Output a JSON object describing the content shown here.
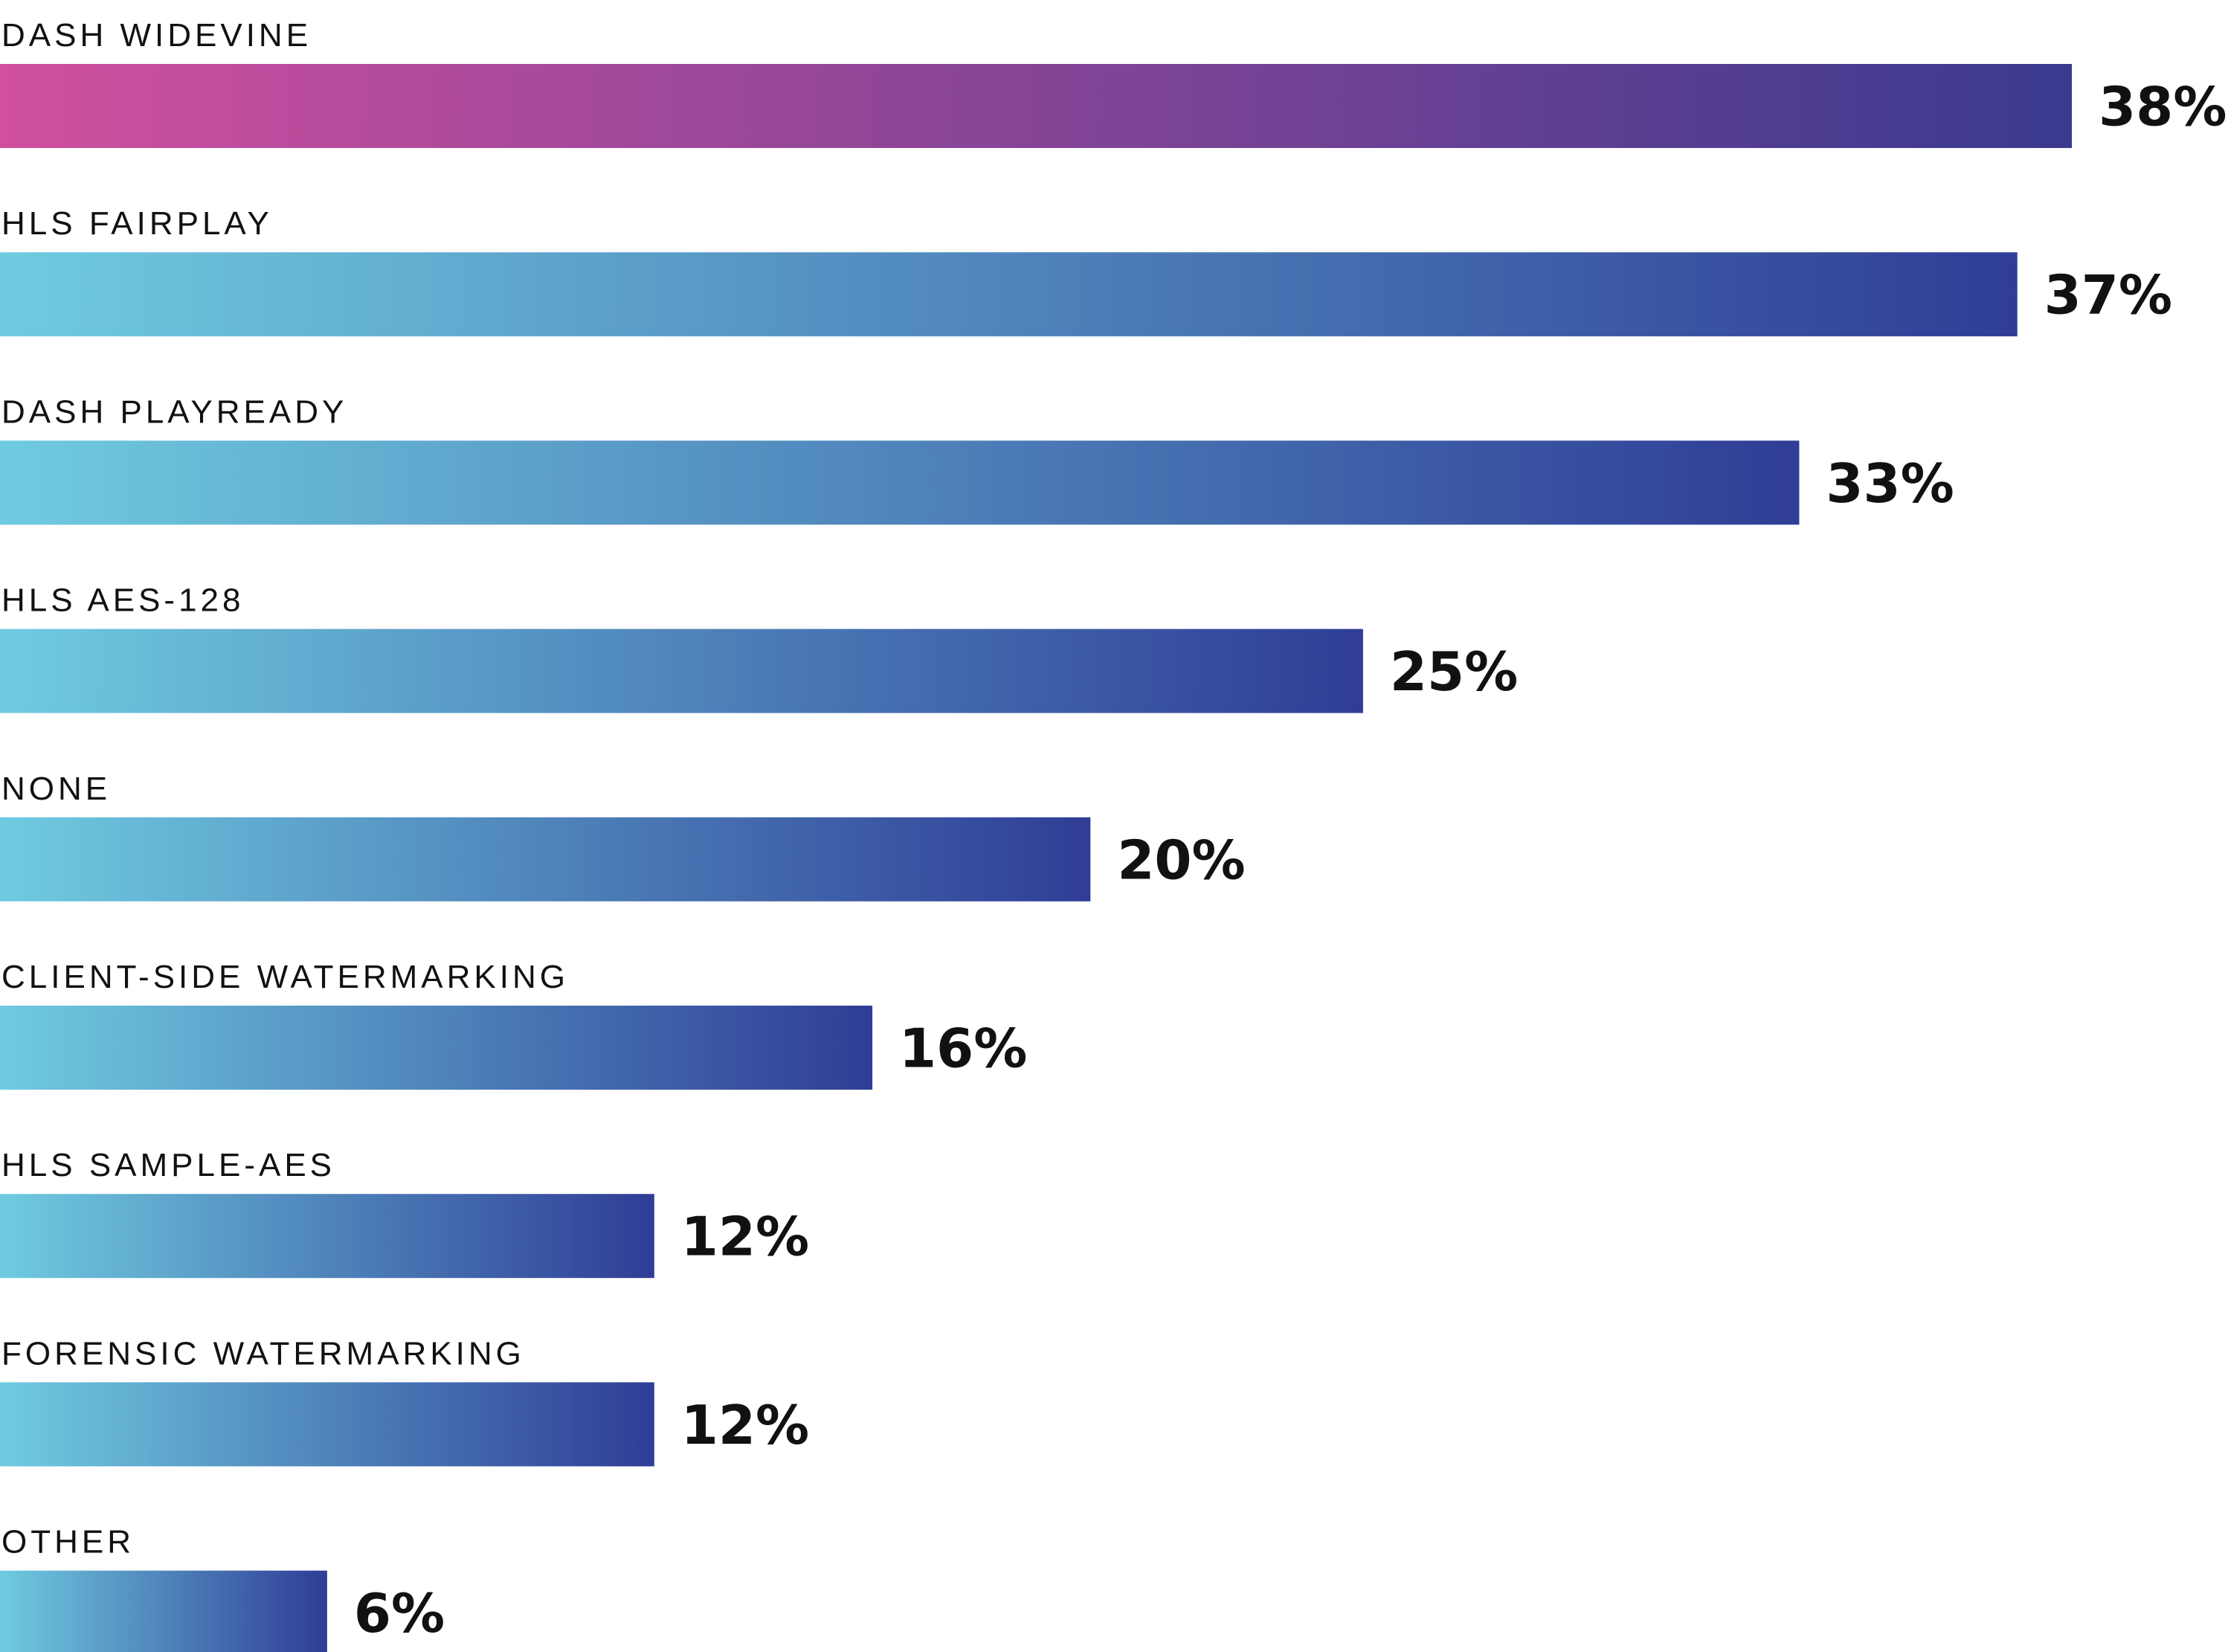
{
  "chart_data": {
    "type": "bar",
    "orientation": "horizontal",
    "categories": [
      "DASH WIDEVINE",
      "HLS FAIRPLAY",
      "DASH PLAYREADY",
      "HLS AES-128",
      "NONE",
      "CLIENT-SIDE WATERMARKING",
      "HLS SAMPLE-AES",
      "FORENSIC WATERMARKING",
      "OTHER"
    ],
    "values": [
      38,
      37,
      33,
      25,
      20,
      16,
      12,
      12,
      6
    ],
    "value_labels": [
      "38%",
      "37%",
      "33%",
      "25%",
      "20%",
      "16%",
      "12%",
      "12%",
      "6%"
    ],
    "value_unit": "%",
    "title": "",
    "xlabel": "",
    "ylabel": "",
    "xlim": [
      0,
      38
    ],
    "grid": false,
    "legend": "none",
    "colors": {
      "highlight_gradient": [
        "#d04f9f",
        "#3a3a8e"
      ],
      "default_gradient": [
        "#6fcbe0",
        "#2f3d96"
      ],
      "text": "#111111"
    },
    "highlight_index": 0
  }
}
